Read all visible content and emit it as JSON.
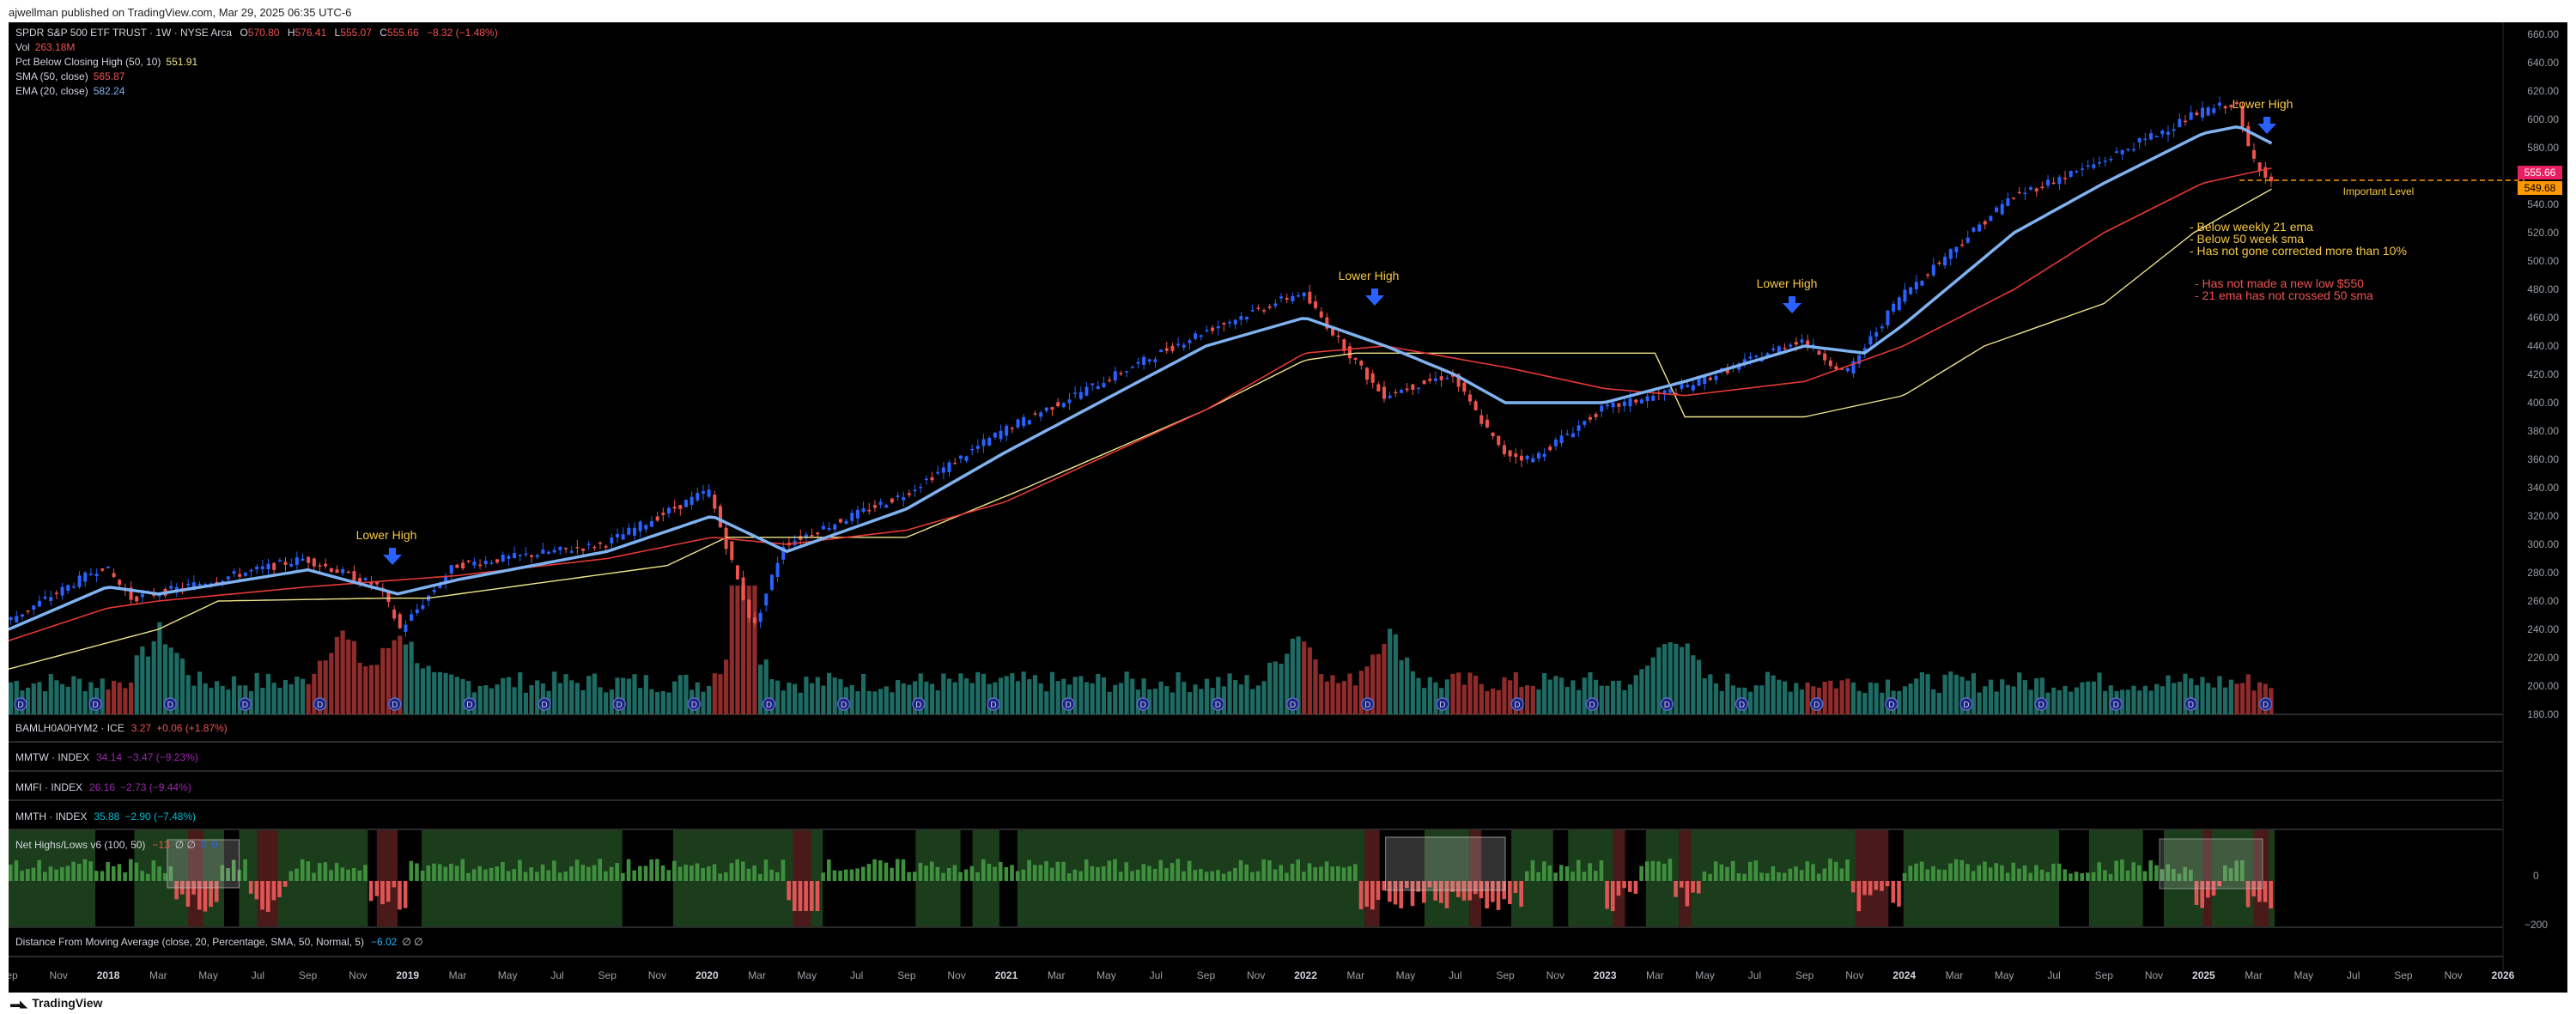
{
  "header": {
    "published_by": "ajwellman published on TradingView.com, Mar 29, 2025 06:35 UTC-6"
  },
  "legend": {
    "symbol": "SPDR S&P 500 ETF TRUST · 1W · NYSE Arca",
    "o_label": "O",
    "o_value": "570.80",
    "h_label": "H",
    "h_value": "576.41",
    "l_label": "L",
    "l_value": "555.07",
    "c_label": "C",
    "c_value": "555.66",
    "change": "−8.32 (−1.48%)",
    "vol_label": "Vol",
    "vol_value": "263.18M",
    "pct_label": "Pct Below Closing High (50, 10)",
    "pct_value": "551.91",
    "sma_label": "SMA (50, close)",
    "sma_value": "565.87",
    "ema_label": "EMA (20, close)",
    "ema_value": "582.24"
  },
  "price_axis": {
    "ticks": [
      "660.00",
      "640.00",
      "620.00",
      "600.00",
      "580.00",
      "560.00",
      "540.00",
      "520.00",
      "500.00",
      "480.00",
      "460.00",
      "440.00",
      "420.00",
      "400.00",
      "380.00",
      "360.00",
      "340.00",
      "320.00",
      "300.00",
      "280.00",
      "260.00",
      "240.00",
      "220.00",
      "200.00",
      "180.00"
    ]
  },
  "price_tags": {
    "close": "555.66",
    "level": "549.68"
  },
  "annotations": {
    "lower_high": "Lower High",
    "important_level": "Important Level",
    "notes_bullish": [
      "- Below weekly 21 ema",
      "- Below 50 week sma",
      "- Has not gone corrected more than 10%"
    ],
    "notes_bearish": [
      "- Has not made a new low $550",
      "- 21 ema has not crossed 50 sma"
    ]
  },
  "panes": {
    "hy": {
      "name": "BAMLH0A0HYM2 · ICE",
      "value": "3.27",
      "change": "+0.06 (+1.87%)"
    },
    "mmtw": {
      "name": "MMTW · INDEX",
      "value": "34.14",
      "change": "−3.47 (−9.23%)"
    },
    "mmfi": {
      "name": "MMFI · INDEX",
      "value": "26.16",
      "change": "−2.73 (−9.44%)"
    },
    "mmth": {
      "name": "MMTH · INDEX",
      "value": "35.88",
      "change": "−2.90 (−7.48%)"
    },
    "nhl": {
      "name": "Net Highs/Lows v6 (100, 50)",
      "value": "−13",
      "extra": "∅ ∅",
      "value2": "0",
      "value3": "0",
      "axis_zero": "0",
      "axis_neg": "−200"
    },
    "dma": {
      "name": "Distance From Moving Average (close, 20, Percentage, SMA, 50, Normal, 5)",
      "value": "−6.02",
      "extra": "∅ ∅"
    }
  },
  "time_axis": [
    {
      "t": 0.0,
      "label": "Sep",
      "bold": false
    },
    {
      "t": 0.167,
      "label": "Nov",
      "bold": false
    },
    {
      "t": 0.333,
      "label": "2018",
      "bold": true
    },
    {
      "t": 0.5,
      "label": "Mar",
      "bold": false
    },
    {
      "t": 0.667,
      "label": "May",
      "bold": false
    },
    {
      "t": 0.833,
      "label": "Jul",
      "bold": false
    },
    {
      "t": 1.0,
      "label": "Sep",
      "bold": false
    },
    {
      "t": 1.167,
      "label": "Nov",
      "bold": false
    },
    {
      "t": 1.333,
      "label": "2019",
      "bold": true
    },
    {
      "t": 1.5,
      "label": "Mar",
      "bold": false
    },
    {
      "t": 1.667,
      "label": "May",
      "bold": false
    },
    {
      "t": 1.833,
      "label": "Jul",
      "bold": false
    },
    {
      "t": 2.0,
      "label": "Sep",
      "bold": false
    },
    {
      "t": 2.167,
      "label": "Nov",
      "bold": false
    },
    {
      "t": 2.333,
      "label": "2020",
      "bold": true
    },
    {
      "t": 2.5,
      "label": "Mar",
      "bold": false
    },
    {
      "t": 2.667,
      "label": "May",
      "bold": false
    },
    {
      "t": 2.833,
      "label": "Jul",
      "bold": false
    },
    {
      "t": 3.0,
      "label": "Sep",
      "bold": false
    },
    {
      "t": 3.167,
      "label": "Nov",
      "bold": false
    },
    {
      "t": 3.333,
      "label": "2021",
      "bold": true
    },
    {
      "t": 3.5,
      "label": "Mar",
      "bold": false
    },
    {
      "t": 3.667,
      "label": "May",
      "bold": false
    },
    {
      "t": 3.833,
      "label": "Jul",
      "bold": false
    },
    {
      "t": 4.0,
      "label": "Sep",
      "bold": false
    },
    {
      "t": 4.167,
      "label": "Nov",
      "bold": false
    },
    {
      "t": 4.333,
      "label": "2022",
      "bold": true
    },
    {
      "t": 4.5,
      "label": "Mar",
      "bold": false
    },
    {
      "t": 4.667,
      "label": "May",
      "bold": false
    },
    {
      "t": 4.833,
      "label": "Jul",
      "bold": false
    },
    {
      "t": 5.0,
      "label": "Sep",
      "bold": false
    },
    {
      "t": 5.167,
      "label": "Nov",
      "bold": false
    },
    {
      "t": 5.333,
      "label": "2023",
      "bold": true
    },
    {
      "t": 5.5,
      "label": "Mar",
      "bold": false
    },
    {
      "t": 5.667,
      "label": "May",
      "bold": false
    },
    {
      "t": 5.833,
      "label": "Jul",
      "bold": false
    },
    {
      "t": 6.0,
      "label": "Sep",
      "bold": false
    },
    {
      "t": 6.167,
      "label": "Nov",
      "bold": false
    },
    {
      "t": 6.333,
      "label": "2024",
      "bold": true
    },
    {
      "t": 6.5,
      "label": "Mar",
      "bold": false
    },
    {
      "t": 6.667,
      "label": "May",
      "bold": false
    },
    {
      "t": 6.833,
      "label": "Jul",
      "bold": false
    },
    {
      "t": 7.0,
      "label": "Sep",
      "bold": false
    },
    {
      "t": 7.167,
      "label": "Nov",
      "bold": false
    },
    {
      "t": 7.333,
      "label": "2025",
      "bold": true
    },
    {
      "t": 7.5,
      "label": "Mar",
      "bold": false
    },
    {
      "t": 7.667,
      "label": "May",
      "bold": false
    },
    {
      "t": 7.833,
      "label": "Jul",
      "bold": false
    },
    {
      "t": 8.0,
      "label": "Sep",
      "bold": false
    },
    {
      "t": 8.167,
      "label": "Nov",
      "bold": false
    },
    {
      "t": 8.333,
      "label": "2026",
      "bold": true
    }
  ],
  "footer": {
    "brand": "TradingView"
  },
  "colors": {
    "up": "#2962ff",
    "down": "#ef5350",
    "ema": "#7fb2f0",
    "sma": "#e53935",
    "pct": "#f0e68c",
    "vol_up": "#1e6b63",
    "vol_down": "#8e2b2b",
    "note_yellow": "#f7c948",
    "note_red": "#ef5350",
    "orange": "#ff9800"
  },
  "chart_data": {
    "type": "line",
    "title": "SPDR S&P 500 ETF TRUST · 1W · NYSE Arca",
    "ylim": [
      180,
      660
    ],
    "x_unit": "years since Sep 2017",
    "series": [
      {
        "name": "SPY weekly price",
        "x": [
          0,
          0.33,
          0.42,
          0.5,
          1.0,
          1.25,
          1.32,
          1.5,
          2.0,
          2.35,
          2.5,
          2.6,
          3.0,
          3.33,
          4.0,
          4.33,
          4.6,
          4.83,
          5.0,
          5.1,
          5.33,
          5.6,
          6.0,
          6.15,
          6.33,
          6.7,
          7.0,
          7.33,
          7.45,
          7.5,
          7.57
        ],
        "y": [
          245,
          285,
          262,
          265,
          290,
          270,
          240,
          285,
          300,
          338,
          240,
          300,
          335,
          380,
          450,
          478,
          405,
          420,
          365,
          360,
          395,
          410,
          445,
          420,
          475,
          545,
          570,
          605,
          612,
          575,
          556
        ]
      },
      {
        "name": "EMA (20, close)",
        "x": [
          0,
          0.33,
          0.5,
          1.0,
          1.3,
          1.5,
          2.0,
          2.35,
          2.6,
          3.0,
          3.33,
          4.0,
          4.33,
          4.6,
          4.83,
          5.0,
          5.33,
          5.6,
          6.0,
          6.2,
          6.33,
          6.7,
          7.0,
          7.33,
          7.45,
          7.57
        ],
        "y": [
          240,
          270,
          265,
          282,
          265,
          275,
          295,
          320,
          295,
          325,
          365,
          440,
          460,
          440,
          420,
          400,
          400,
          415,
          440,
          435,
          455,
          520,
          555,
          590,
          595,
          582
        ]
      },
      {
        "name": "SMA (50, close)",
        "x": [
          0,
          0.33,
          0.5,
          1.0,
          1.5,
          2.0,
          2.35,
          2.6,
          3.0,
          3.33,
          4.0,
          4.33,
          4.6,
          5.0,
          5.33,
          5.6,
          6.0,
          6.33,
          6.7,
          7.0,
          7.33,
          7.57
        ],
        "y": [
          232,
          255,
          260,
          270,
          278,
          290,
          305,
          300,
          310,
          330,
          395,
          435,
          440,
          425,
          410,
          405,
          415,
          440,
          480,
          520,
          555,
          566
        ]
      },
      {
        "name": "Pct Below Closing High (50, 10)",
        "x": [
          0,
          0.5,
          0.7,
          1.25,
          1.4,
          2.2,
          2.4,
          3.0,
          3.4,
          4.0,
          4.33,
          4.5,
          5.5,
          5.6,
          6.0,
          6.33,
          6.6,
          7.0,
          7.3,
          7.57
        ],
        "y": [
          212,
          240,
          260,
          262,
          262,
          285,
          305,
          305,
          340,
          395,
          430,
          435,
          435,
          390,
          390,
          405,
          440,
          470,
          520,
          552
        ]
      }
    ],
    "volume": {
      "x_range": [
        0,
        7.57
      ],
      "peaks_at": [
        0.5,
        1.1,
        1.3,
        2.45,
        4.3,
        4.6,
        5.55
      ]
    },
    "horizontal_level": 549.68
  }
}
